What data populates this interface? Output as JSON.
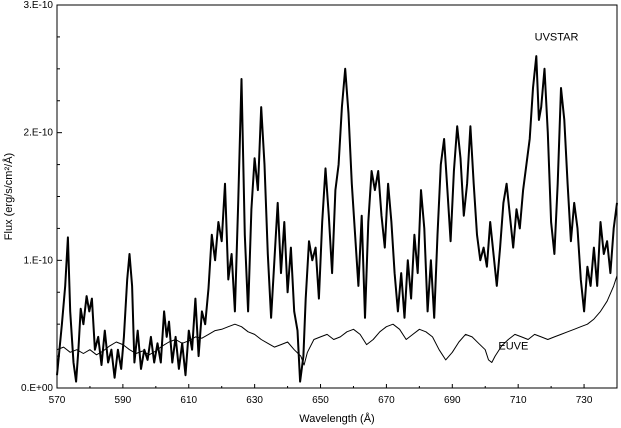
{
  "chart_data": {
    "type": "line",
    "title": "",
    "xlabel": "Wavelength (Å)",
    "ylabel": "Flux (erg/s/cm²/Å)",
    "xlim": [
      570,
      740
    ],
    "ylim": [
      0,
      3e-10
    ],
    "x_ticks": [
      570,
      590,
      610,
      630,
      650,
      670,
      690,
      710,
      730
    ],
    "x_tick_labels": [
      "570",
      "590",
      "610",
      "630",
      "650",
      "670",
      "690",
      "710",
      "730"
    ],
    "y_ticks": [
      0,
      1e-10,
      2e-10,
      3e-10
    ],
    "y_tick_labels": [
      "0.E+00",
      "1.E-10",
      "2.E-10",
      "3.E-10"
    ],
    "grid": false,
    "legend": "none (series labels drawn next to curves)",
    "series": [
      {
        "name": "UVSTAR",
        "color": "#000000",
        "label_position_data": [
          715,
          2.72e-10
        ],
        "points": [
          [
            570,
            1e-11
          ],
          [
            571.5,
            5e-11
          ],
          [
            572.5,
            8e-11
          ],
          [
            573.3,
            1.18e-10
          ],
          [
            574,
            6e-11
          ],
          [
            575,
            2e-11
          ],
          [
            575.8,
            5e-12
          ],
          [
            576.5,
            3e-11
          ],
          [
            577.2,
            6.2e-11
          ],
          [
            578,
            5e-11
          ],
          [
            579,
            7.2e-11
          ],
          [
            579.8,
            6e-11
          ],
          [
            580.6,
            7e-11
          ],
          [
            581.5,
            3e-11
          ],
          [
            582.5,
            4e-11
          ],
          [
            583.5,
            1.8e-11
          ],
          [
            584.5,
            4.5e-11
          ],
          [
            585.5,
            2e-11
          ],
          [
            586.5,
            3e-11
          ],
          [
            587.5,
            8e-12
          ],
          [
            588.5,
            3e-11
          ],
          [
            589.5,
            1.5e-11
          ],
          [
            590.3,
            4e-11
          ],
          [
            591.3,
            8.5e-11
          ],
          [
            592,
            1.05e-10
          ],
          [
            592.8,
            8e-11
          ],
          [
            593.5,
            2e-11
          ],
          [
            594.5,
            4.5e-11
          ],
          [
            595.5,
            1.5e-11
          ],
          [
            596.5,
            3e-11
          ],
          [
            597.5,
            2.2e-11
          ],
          [
            598.5,
            4e-11
          ],
          [
            599.5,
            2e-11
          ],
          [
            600.5,
            3.5e-11
          ],
          [
            601.5,
            2e-11
          ],
          [
            602.5,
            6e-11
          ],
          [
            603.3,
            4e-11
          ],
          [
            604,
            5.2e-11
          ],
          [
            605,
            2e-11
          ],
          [
            606,
            4e-11
          ],
          [
            607,
            1.5e-11
          ],
          [
            608,
            3.5e-11
          ],
          [
            609,
            1e-11
          ],
          [
            610,
            4.5e-11
          ],
          [
            611,
            3e-11
          ],
          [
            612,
            7e-11
          ],
          [
            613,
            2.5e-11
          ],
          [
            614,
            6e-11
          ],
          [
            615,
            5e-11
          ],
          [
            616,
            7.8e-11
          ],
          [
            617,
            1.2e-10
          ],
          [
            618,
            1e-10
          ],
          [
            619,
            1.3e-10
          ],
          [
            620,
            1.15e-10
          ],
          [
            621,
            1.6e-10
          ],
          [
            622,
            8.5e-11
          ],
          [
            623,
            1.05e-10
          ],
          [
            624,
            6e-11
          ],
          [
            625,
            1.45e-10
          ],
          [
            626,
            2.42e-10
          ],
          [
            627,
            1.2e-10
          ],
          [
            628,
            6e-11
          ],
          [
            629,
            1.4e-10
          ],
          [
            630,
            1.8e-10
          ],
          [
            631,
            1.55e-10
          ],
          [
            632,
            2.2e-10
          ],
          [
            633,
            1.75e-10
          ],
          [
            634,
            1.05e-10
          ],
          [
            635,
            5.5e-11
          ],
          [
            636,
            1e-10
          ],
          [
            637,
            1.45e-10
          ],
          [
            638,
            9e-11
          ],
          [
            639,
            1.3e-10
          ],
          [
            640,
            7.5e-11
          ],
          [
            641,
            1.1e-10
          ],
          [
            642,
            6e-11
          ],
          [
            643,
            4.5e-11
          ],
          [
            643.8,
            5e-12
          ],
          [
            644.8,
            2.5e-11
          ],
          [
            645.5,
            7e-11
          ],
          [
            646.5,
            1.15e-10
          ],
          [
            647.5,
            1e-10
          ],
          [
            648.5,
            1.1e-10
          ],
          [
            649.5,
            7e-11
          ],
          [
            650.5,
            1.3e-10
          ],
          [
            651.5,
            1.72e-10
          ],
          [
            652.5,
            1.35e-10
          ],
          [
            653.5,
            9e-11
          ],
          [
            654.5,
            1.55e-10
          ],
          [
            655.5,
            1.75e-10
          ],
          [
            656.5,
            2.2e-10
          ],
          [
            657.5,
            2.5e-10
          ],
          [
            658.5,
            2.15e-10
          ],
          [
            659.5,
            1.6e-10
          ],
          [
            660.5,
            1.2e-10
          ],
          [
            661.5,
            8e-11
          ],
          [
            662.5,
            1.35e-10
          ],
          [
            663.5,
            5.5e-11
          ],
          [
            664.5,
            1.3e-10
          ],
          [
            665.5,
            1.7e-10
          ],
          [
            666.5,
            1.55e-10
          ],
          [
            667.5,
            1.7e-10
          ],
          [
            668.5,
            1.35e-10
          ],
          [
            669.5,
            1.1e-10
          ],
          [
            670.5,
            1.6e-10
          ],
          [
            671.5,
            1.3e-10
          ],
          [
            672.5,
            9e-11
          ],
          [
            673.5,
            6e-11
          ],
          [
            674.5,
            9e-11
          ],
          [
            675.5,
            5.5e-11
          ],
          [
            676.5,
            1e-10
          ],
          [
            677.5,
            7e-11
          ],
          [
            678.5,
            1.2e-10
          ],
          [
            679.5,
            9e-11
          ],
          [
            680.5,
            1.55e-10
          ],
          [
            681.5,
            1.25e-10
          ],
          [
            682.5,
            6e-11
          ],
          [
            683.5,
            1e-10
          ],
          [
            684.5,
            5.5e-11
          ],
          [
            685.5,
            1.2e-10
          ],
          [
            686.5,
            1.75e-10
          ],
          [
            687.5,
            1.95e-10
          ],
          [
            688.5,
            1.55e-10
          ],
          [
            689.5,
            1.15e-10
          ],
          [
            690.5,
            1.7e-10
          ],
          [
            691.5,
            2.05e-10
          ],
          [
            692.5,
            1.8e-10
          ],
          [
            693.5,
            1.35e-10
          ],
          [
            694.5,
            1.6e-10
          ],
          [
            695.5,
            2.05e-10
          ],
          [
            696.5,
            1.6e-10
          ],
          [
            697.5,
            1.2e-10
          ],
          [
            698.5,
            1e-10
          ],
          [
            699.5,
            1.1e-10
          ],
          [
            700.5,
            9.5e-11
          ],
          [
            701.5,
            1.3e-10
          ],
          [
            702.5,
            1.05e-10
          ],
          [
            703.5,
            8e-11
          ],
          [
            704.5,
            1.1e-10
          ],
          [
            705.5,
            1.45e-10
          ],
          [
            706.5,
            1.6e-10
          ],
          [
            707.5,
            1.35e-10
          ],
          [
            708.5,
            1.1e-10
          ],
          [
            709.5,
            1.4e-10
          ],
          [
            710.5,
            1.25e-10
          ],
          [
            711.5,
            1.55e-10
          ],
          [
            712.5,
            1.75e-10
          ],
          [
            713.5,
            1.95e-10
          ],
          [
            714.5,
            2.35e-10
          ],
          [
            715.5,
            2.6e-10
          ],
          [
            716.3,
            2.1e-10
          ],
          [
            717,
            2.2e-10
          ],
          [
            718,
            2.5e-10
          ],
          [
            719,
            2e-10
          ],
          [
            720,
            1.3e-10
          ],
          [
            721,
            1.05e-10
          ],
          [
            722,
            1.6e-10
          ],
          [
            723,
            2.35e-10
          ],
          [
            724,
            2.1e-10
          ],
          [
            725,
            1.6e-10
          ],
          [
            726,
            1.15e-10
          ],
          [
            727,
            1.45e-10
          ],
          [
            728,
            1.25e-10
          ],
          [
            729,
            8.5e-11
          ],
          [
            730,
            6e-11
          ],
          [
            731,
            9.5e-11
          ],
          [
            732,
            8e-11
          ],
          [
            733,
            1.1e-10
          ],
          [
            734,
            8e-11
          ],
          [
            735,
            1.3e-10
          ],
          [
            736,
            1.05e-10
          ],
          [
            737,
            1.15e-10
          ],
          [
            738,
            9e-11
          ],
          [
            739,
            1.25e-10
          ],
          [
            740,
            1.45e-10
          ]
        ]
      },
      {
        "name": "EUVE",
        "color": "#000000",
        "label_position_data": [
          704,
          3e-11
        ],
        "points": [
          [
            570,
            3e-11
          ],
          [
            572,
            3.2e-11
          ],
          [
            574,
            2.8e-11
          ],
          [
            576,
            3e-11
          ],
          [
            578,
            2.7e-11
          ],
          [
            580,
            3e-11
          ],
          [
            582,
            2.6e-11
          ],
          [
            584,
            2.9e-11
          ],
          [
            586,
            3.3e-11
          ],
          [
            588,
            3.6e-11
          ],
          [
            590,
            3.4e-11
          ],
          [
            592,
            3e-11
          ],
          [
            594,
            2.7e-11
          ],
          [
            596,
            2.9e-11
          ],
          [
            598,
            2.6e-11
          ],
          [
            600,
            2.9e-11
          ],
          [
            602,
            3.3e-11
          ],
          [
            604,
            3.6e-11
          ],
          [
            606,
            3.8e-11
          ],
          [
            608,
            3.5e-11
          ],
          [
            610,
            3.7e-11
          ],
          [
            612,
            4e-11
          ],
          [
            614,
            3.9e-11
          ],
          [
            616,
            4.2e-11
          ],
          [
            618,
            4.5e-11
          ],
          [
            620,
            4.6e-11
          ],
          [
            622,
            4.8e-11
          ],
          [
            624,
            5e-11
          ],
          [
            626,
            4.8e-11
          ],
          [
            628,
            4.4e-11
          ],
          [
            630,
            4.2e-11
          ],
          [
            632,
            3.8e-11
          ],
          [
            634,
            3.5e-11
          ],
          [
            636,
            3.2e-11
          ],
          [
            638,
            3.4e-11
          ],
          [
            640,
            3.6e-11
          ],
          [
            642,
            3e-11
          ],
          [
            644,
            2.5e-11
          ],
          [
            645,
            1.8e-11
          ],
          [
            646,
            2.8e-11
          ],
          [
            648,
            3.8e-11
          ],
          [
            650,
            4e-11
          ],
          [
            652,
            4.2e-11
          ],
          [
            654,
            3.8e-11
          ],
          [
            656,
            4e-11
          ],
          [
            658,
            4.4e-11
          ],
          [
            660,
            4.6e-11
          ],
          [
            662,
            4.2e-11
          ],
          [
            664,
            3.4e-11
          ],
          [
            666,
            3.8e-11
          ],
          [
            668,
            4.4e-11
          ],
          [
            670,
            4.8e-11
          ],
          [
            672,
            5e-11
          ],
          [
            674,
            4.6e-11
          ],
          [
            676,
            3.8e-11
          ],
          [
            678,
            4.2e-11
          ],
          [
            680,
            4.6e-11
          ],
          [
            682,
            4.4e-11
          ],
          [
            684,
            4e-11
          ],
          [
            686,
            3e-11
          ],
          [
            688,
            2.2e-11
          ],
          [
            690,
            2.8e-11
          ],
          [
            692,
            3.6e-11
          ],
          [
            694,
            4.2e-11
          ],
          [
            696,
            4e-11
          ],
          [
            698,
            3.5e-11
          ],
          [
            700,
            3e-11
          ],
          [
            701,
            2.2e-11
          ],
          [
            702,
            2e-11
          ],
          [
            703,
            2.5e-11
          ],
          [
            705,
            3.3e-11
          ],
          [
            707,
            3.8e-11
          ],
          [
            709,
            4.2e-11
          ],
          [
            711,
            4e-11
          ],
          [
            713,
            3.8e-11
          ],
          [
            715,
            4.2e-11
          ],
          [
            717,
            4e-11
          ],
          [
            719,
            3.8e-11
          ],
          [
            721,
            4e-11
          ],
          [
            723,
            4.2e-11
          ],
          [
            725,
            4.4e-11
          ],
          [
            727,
            4.6e-11
          ],
          [
            729,
            4.8e-11
          ],
          [
            731,
            5e-11
          ],
          [
            733,
            5.4e-11
          ],
          [
            735,
            6e-11
          ],
          [
            737,
            6.8e-11
          ],
          [
            739,
            8e-11
          ],
          [
            740,
            8.8e-11
          ]
        ]
      }
    ]
  }
}
